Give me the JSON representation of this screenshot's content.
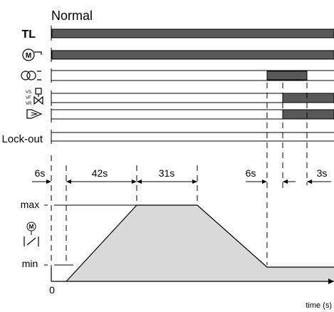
{
  "title": "Normal",
  "rows": [
    {
      "label": "TL",
      "kind": "text"
    },
    {
      "label": "",
      "kind": "icon",
      "icon": "motor-m-icon"
    },
    {
      "label": "",
      "kind": "icon",
      "icon": "transformer-icon"
    },
    {
      "label": "VS VF VR",
      "kind": "icon",
      "icon": "valve-icon"
    },
    {
      "label": "",
      "kind": "icon",
      "icon": "flame-icon"
    },
    {
      "label": "Lock-out",
      "kind": "text"
    }
  ],
  "valve_sublabels": [
    "VS",
    "VF",
    "VR"
  ],
  "durations": {
    "d1": "6s",
    "d2": "42s",
    "d3": "31s",
    "d4": "6s",
    "d5": "3s"
  },
  "graph": {
    "max_label": "max",
    "min_label": "min",
    "zero_label": "0",
    "x_axis_label": "time (s)",
    "icon": "damper-motor-icon"
  },
  "colors": {
    "bar_fill": "#595959",
    "area_fill": "#d9d9d9",
    "line": "#000000"
  }
}
